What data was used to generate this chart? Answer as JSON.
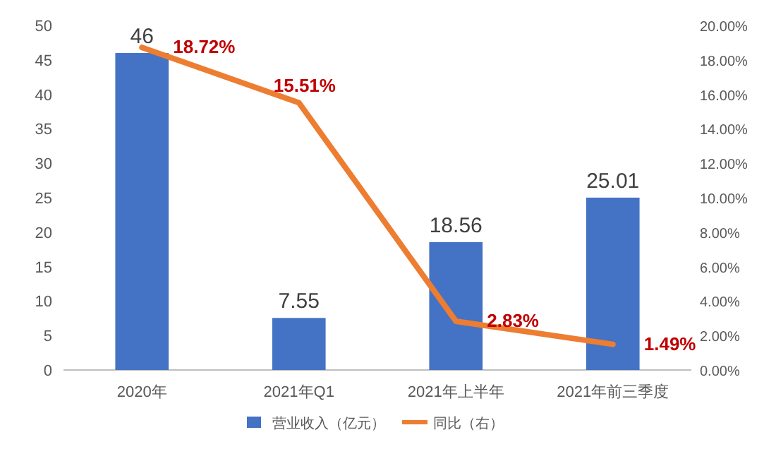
{
  "chart_data": {
    "type": "bar",
    "categories": [
      "2020年",
      "2021年Q1",
      "2021年上半年",
      "2021年前三季度"
    ],
    "series": [
      {
        "name": "营业收入（亿元）",
        "color": "#4472c4",
        "values": [
          46,
          7.55,
          18.56,
          25.01
        ],
        "value_labels": [
          "46",
          "7.55",
          "18.56",
          "25.01"
        ]
      },
      {
        "name": "同比（右）",
        "type": "line",
        "axis": "y2",
        "color": "#ed7d31",
        "values": [
          18.72,
          15.51,
          2.83,
          1.49
        ],
        "value_labels": [
          "18.72%",
          "15.51%",
          "2.83%",
          "1.49%"
        ]
      }
    ],
    "ylim": [
      0,
      50
    ],
    "yticks": [
      0,
      5,
      10,
      15,
      20,
      25,
      30,
      35,
      40,
      45,
      50
    ],
    "y2lim": [
      0,
      20
    ],
    "y2ticks": [
      {
        "value": 0,
        "label": "0.00%"
      },
      {
        "value": 2,
        "label": "2.00%"
      },
      {
        "value": 4,
        "label": "4.00%"
      },
      {
        "value": 6,
        "label": "6.00%"
      },
      {
        "value": 8,
        "label": "8.00%"
      },
      {
        "value": 10,
        "label": "10.00%"
      },
      {
        "value": 12,
        "label": "12.00%"
      },
      {
        "value": 14,
        "label": "14.00%"
      },
      {
        "value": 16,
        "label": "16.00%"
      },
      {
        "value": 18,
        "label": "18.00%"
      },
      {
        "value": 20,
        "label": "20.00%"
      }
    ],
    "legend": "bottom"
  }
}
